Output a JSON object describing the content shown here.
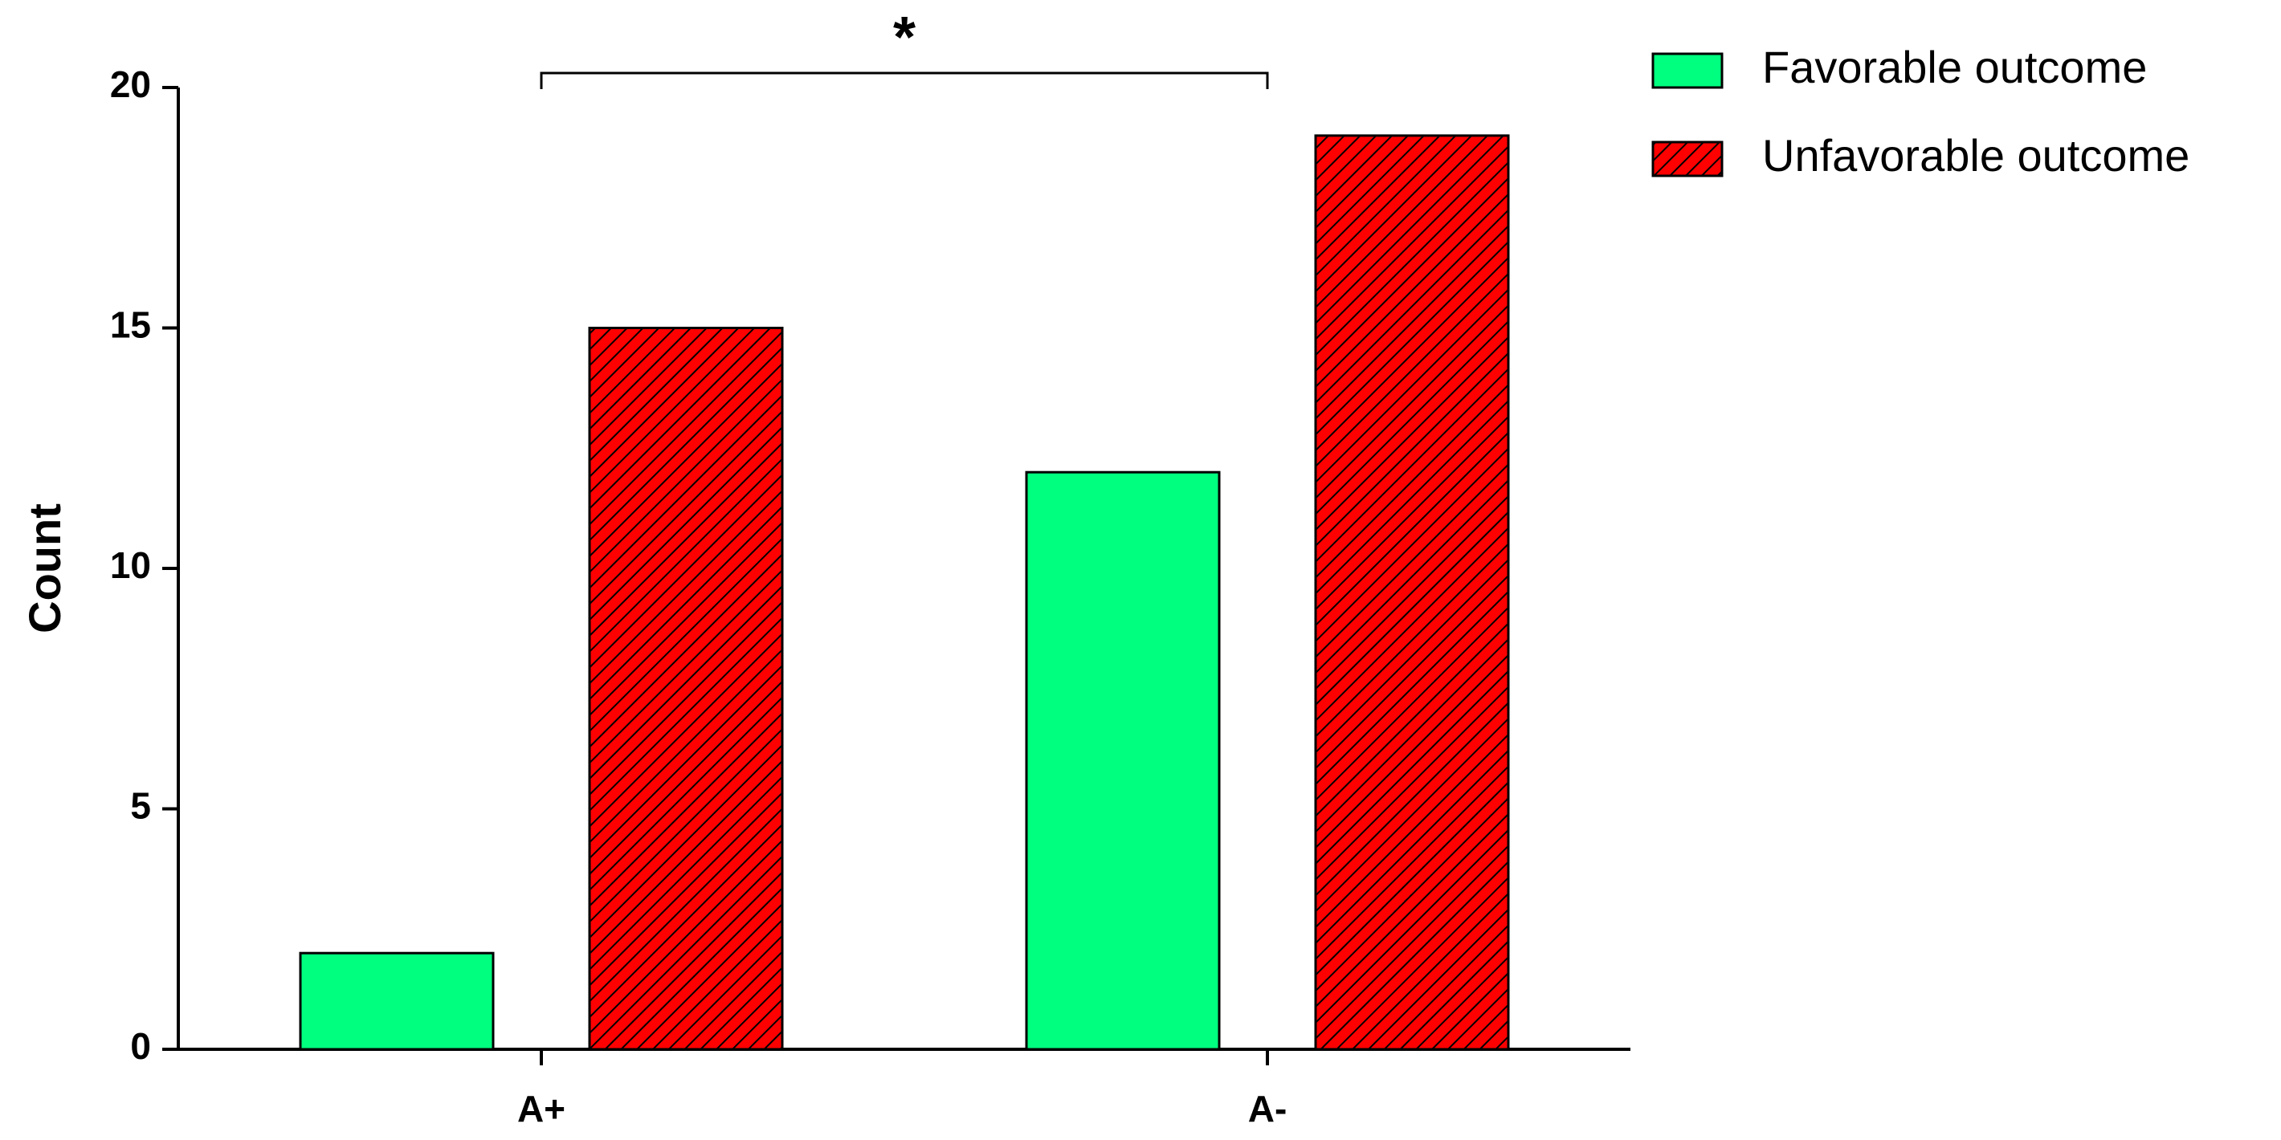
{
  "chart_data": {
    "type": "bar",
    "ylabel": "Count",
    "annotation": "*",
    "categories": [
      "A+",
      "A-"
    ],
    "series": [
      {
        "name": "Favorable outcome",
        "color": "#00ff7f",
        "values": [
          2,
          12
        ]
      },
      {
        "name": "Unfavorable outcome",
        "color": "#ff0000",
        "hatch": true,
        "values": [
          15,
          19
        ]
      }
    ],
    "ylim": [
      0,
      20
    ],
    "yticks": [
      0,
      5,
      10,
      15,
      20
    ]
  }
}
